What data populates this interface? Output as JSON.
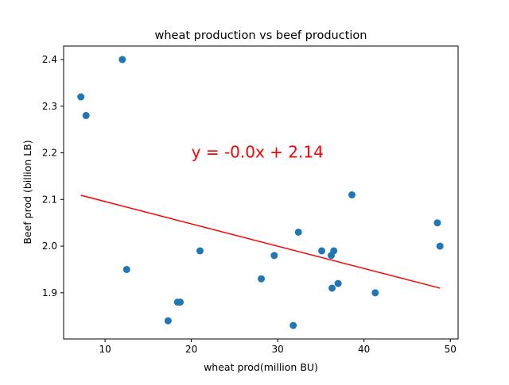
{
  "chart_data": {
    "type": "scatter",
    "title": "wheat production vs beef production",
    "xlabel": "wheat prod(million BU)",
    "ylabel": "Beef prod (billion LB)",
    "xlim": [
      5.2,
      50.9
    ],
    "ylim": [
      1.801,
      2.429
    ],
    "xticks": [
      10,
      20,
      30,
      40,
      50
    ],
    "yticks": [
      1.9,
      2.0,
      2.1,
      2.2,
      2.3,
      2.4
    ],
    "xtick_labels": [
      "10",
      "20",
      "30",
      "40",
      "50"
    ],
    "ytick_labels": [
      "1.9",
      "2.0",
      "2.1",
      "2.2",
      "2.3",
      "2.4"
    ],
    "grid": false,
    "series": [
      {
        "color": "#1f77b4",
        "marker": "circle",
        "points": [
          {
            "x": 7.2,
            "y": 2.32
          },
          {
            "x": 7.8,
            "y": 2.28
          },
          {
            "x": 12.0,
            "y": 2.4
          },
          {
            "x": 12.5,
            "y": 1.95
          },
          {
            "x": 17.3,
            "y": 1.84
          },
          {
            "x": 18.4,
            "y": 1.88
          },
          {
            "x": 18.7,
            "y": 1.88
          },
          {
            "x": 21.0,
            "y": 1.99
          },
          {
            "x": 28.1,
            "y": 1.93
          },
          {
            "x": 29.6,
            "y": 1.98
          },
          {
            "x": 31.8,
            "y": 1.83
          },
          {
            "x": 32.4,
            "y": 2.03
          },
          {
            "x": 35.1,
            "y": 1.99
          },
          {
            "x": 36.2,
            "y": 1.98
          },
          {
            "x": 36.3,
            "y": 1.91
          },
          {
            "x": 36.5,
            "y": 1.99
          },
          {
            "x": 37.0,
            "y": 1.92
          },
          {
            "x": 38.6,
            "y": 2.11
          },
          {
            "x": 41.3,
            "y": 1.9
          },
          {
            "x": 48.5,
            "y": 2.05
          },
          {
            "x": 48.8,
            "y": 2.0
          }
        ]
      }
    ],
    "regression_line": {
      "color": "#ff0000",
      "x": [
        7.2,
        48.8
      ],
      "y": [
        2.109,
        1.91
      ]
    },
    "annotation": {
      "text": "y = -0.0x + 2.14",
      "x": 20.0,
      "y": 2.19,
      "color": "#ff0000"
    }
  }
}
